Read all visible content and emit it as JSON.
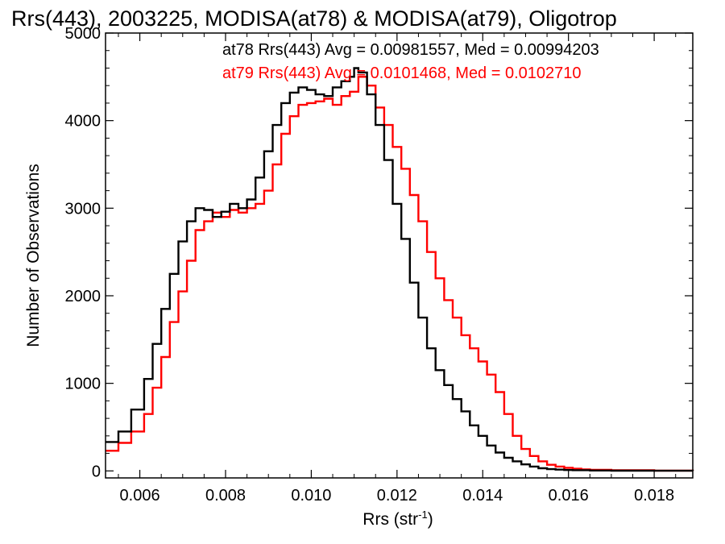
{
  "chart_data": {
    "type": "line",
    "step": true,
    "title": "Rrs(443), 2003225, MODISA(at78) & MODISA(at79), Oligotrop",
    "xlabel": "Rrs (str",
    "xlabel_sup": "-1",
    "xlabel_suffix": ")",
    "ylabel": "Number of Observations",
    "xlim": [
      0.0052,
      0.0189
    ],
    "ylim": [
      -80,
      5000
    ],
    "xticks": [
      0.006,
      0.008,
      0.01,
      0.012,
      0.014,
      0.016,
      0.018
    ],
    "xtick_labels": [
      "0.006",
      "0.008",
      "0.010",
      "0.012",
      "0.014",
      "0.016",
      "0.018"
    ],
    "yticks": [
      0,
      1000,
      2000,
      3000,
      4000,
      5000
    ],
    "ytick_labels": [
      "0",
      "1000",
      "2000",
      "3000",
      "4000",
      "5000"
    ],
    "annotations": [
      {
        "text": "at78 Rrs(443) Avg = 0.00981557, Med = 0.00994203",
        "color": "#000000"
      },
      {
        "text": "at79 Rrs(443) Avg = 0.0101468, Med = 0.0102710",
        "color": "#ff0000"
      }
    ],
    "series": [
      {
        "name": "at78",
        "color": "#000000",
        "x": [
          0.0052,
          0.0055,
          0.0058,
          0.0061,
          0.0063,
          0.0065,
          0.0067,
          0.0069,
          0.0071,
          0.0073,
          0.0075,
          0.0077,
          0.0079,
          0.0081,
          0.0083,
          0.0085,
          0.0087,
          0.0089,
          0.0091,
          0.0093,
          0.0095,
          0.0097,
          0.0099,
          0.0101,
          0.0103,
          0.0105,
          0.0107,
          0.0109,
          0.011,
          0.0111,
          0.0113,
          0.0115,
          0.0117,
          0.0119,
          0.0121,
          0.0123,
          0.0125,
          0.0127,
          0.0129,
          0.0131,
          0.0133,
          0.0135,
          0.0137,
          0.0139,
          0.0141,
          0.0143,
          0.0145,
          0.0147,
          0.0149,
          0.0151,
          0.0153,
          0.0155,
          0.0157,
          0.0159,
          0.0161,
          0.0165,
          0.017,
          0.018,
          0.0189
        ],
        "y": [
          330,
          450,
          700,
          1050,
          1450,
          1850,
          2250,
          2620,
          2850,
          3000,
          2980,
          2900,
          2960,
          3050,
          3000,
          3100,
          3350,
          3650,
          3950,
          4200,
          4320,
          4380,
          4350,
          4300,
          4280,
          4380,
          4450,
          4500,
          4600,
          4550,
          4300,
          3950,
          3550,
          3050,
          2650,
          2150,
          1750,
          1400,
          1150,
          980,
          820,
          680,
          520,
          400,
          290,
          210,
          150,
          110,
          75,
          50,
          30,
          20,
          15,
          10,
          8,
          5,
          3,
          2,
          1
        ]
      },
      {
        "name": "at79",
        "color": "#ff0000",
        "x": [
          0.0052,
          0.0055,
          0.0058,
          0.0061,
          0.0063,
          0.0065,
          0.0067,
          0.0069,
          0.0071,
          0.0073,
          0.0075,
          0.0077,
          0.0079,
          0.0081,
          0.0083,
          0.0085,
          0.0087,
          0.0089,
          0.0091,
          0.0093,
          0.0095,
          0.0097,
          0.0099,
          0.0101,
          0.0103,
          0.0105,
          0.0107,
          0.0109,
          0.0111,
          0.0113,
          0.0115,
          0.0117,
          0.0119,
          0.0121,
          0.0123,
          0.0125,
          0.0127,
          0.0129,
          0.0131,
          0.0133,
          0.0135,
          0.0137,
          0.0139,
          0.0141,
          0.0143,
          0.0145,
          0.0147,
          0.0149,
          0.0151,
          0.0153,
          0.0155,
          0.0157,
          0.0159,
          0.0161,
          0.0163,
          0.0165,
          0.017,
          0.018,
          0.0189
        ],
        "y": [
          230,
          320,
          450,
          650,
          950,
          1300,
          1700,
          2050,
          2400,
          2750,
          2850,
          2950,
          2900,
          2980,
          2950,
          3000,
          3050,
          3200,
          3500,
          3850,
          4050,
          4180,
          4200,
          4220,
          4250,
          4180,
          4280,
          4330,
          4500,
          4400,
          4150,
          3950,
          3700,
          3450,
          3150,
          2850,
          2500,
          2200,
          1950,
          1750,
          1550,
          1400,
          1250,
          1100,
          900,
          650,
          400,
          250,
          170,
          110,
          70,
          50,
          35,
          25,
          18,
          12,
          8,
          4,
          2
        ]
      }
    ]
  }
}
